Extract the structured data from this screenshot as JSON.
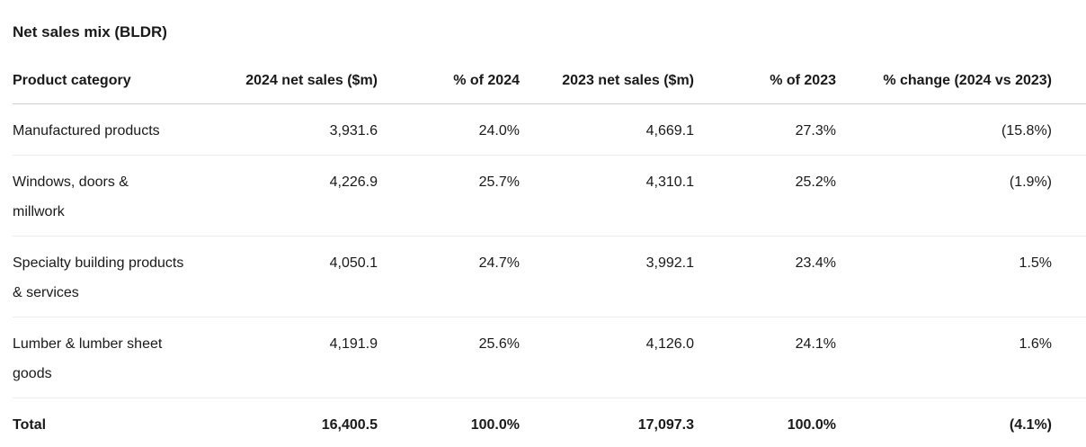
{
  "title": "Net sales mix (BLDR)",
  "colors": {
    "background": "#ffffff",
    "text": "#191919",
    "header_border": "#cfcfcf",
    "row_border": "#ececec"
  },
  "chart_data": {
    "type": "table",
    "title": "Net sales mix (BLDR)",
    "columns": [
      "Product category",
      "2024 net sales ($m)",
      "% of 2024",
      "2023 net sales ($m)",
      "% of 2023",
      "% change (2024 vs 2023)"
    ],
    "column_alignment": [
      "left",
      "right",
      "right",
      "right",
      "right",
      "right"
    ],
    "rows": [
      {
        "category": "Manufactured products",
        "category_lines": [
          "Manufactured products"
        ],
        "net_sales_2024_m": "3,931.6",
        "pct_of_2024": "24.0%",
        "net_sales_2023_m": "4,669.1",
        "pct_of_2023": "27.3%",
        "pct_change_2024_vs_2023": "(15.8%)"
      },
      {
        "category": "Windows, doors & millwork",
        "category_lines": [
          "Windows, doors &",
          "millwork"
        ],
        "net_sales_2024_m": "4,226.9",
        "pct_of_2024": "25.7%",
        "net_sales_2023_m": "4,310.1",
        "pct_of_2023": "25.2%",
        "pct_change_2024_vs_2023": "(1.9%)"
      },
      {
        "category": "Specialty building products & services",
        "category_lines": [
          "Specialty building products",
          "& services"
        ],
        "net_sales_2024_m": "4,050.1",
        "pct_of_2024": "24.7%",
        "net_sales_2023_m": "3,992.1",
        "pct_of_2023": "23.4%",
        "pct_change_2024_vs_2023": "1.5%"
      },
      {
        "category": "Lumber & lumber sheet goods",
        "category_lines": [
          "Lumber & lumber sheet",
          "goods"
        ],
        "net_sales_2024_m": "4,191.9",
        "pct_of_2024": "25.6%",
        "net_sales_2023_m": "4,126.0",
        "pct_of_2023": "24.1%",
        "pct_change_2024_vs_2023": "1.6%"
      }
    ],
    "total": {
      "category": "Total",
      "net_sales_2024_m": "16,400.5",
      "pct_of_2024": "100.0%",
      "net_sales_2023_m": "17,097.3",
      "pct_of_2023": "100.0%",
      "pct_change_2024_vs_2023": "(4.1%)"
    }
  }
}
